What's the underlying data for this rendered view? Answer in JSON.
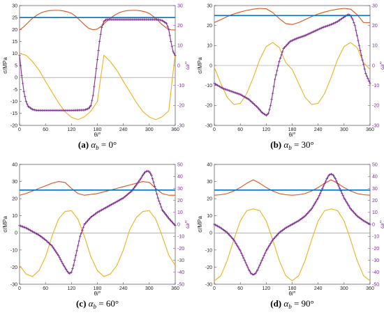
{
  "chart_data": [
    {
      "type": "line",
      "caption": {
        "label": "(a)",
        "sym": "α",
        "sub": "b",
        "rest": " = 0°"
      },
      "xlabel": "θ/°",
      "ylabel": "σ/MPa",
      "y2label": "ω/°",
      "xlim": [
        0,
        360
      ],
      "xticks": [
        0,
        60,
        120,
        180,
        240,
        300,
        360
      ],
      "ylim": [
        -20,
        30
      ],
      "yticks": [
        -20,
        -15,
        -10,
        -5,
        0,
        5,
        10,
        15,
        20,
        25,
        30
      ],
      "y2lim": [
        -30,
        30
      ],
      "y2ticks": [
        -30,
        -20,
        -10,
        0,
        10,
        20,
        30
      ],
      "colors": {
        "red": "#d95319",
        "yellow": "#edb120",
        "blue": "#0072bd",
        "purple": "#7e2f8e",
        "zero": "#888888"
      },
      "series": [
        {
          "axis": "left",
          "color": "red",
          "x": [
            0,
            10,
            20,
            30,
            40,
            50,
            60,
            70,
            80,
            90,
            100,
            110,
            120,
            130,
            140,
            150,
            160,
            170,
            180,
            190,
            200,
            210,
            220,
            230,
            240,
            250,
            260,
            270,
            280,
            290,
            300,
            310,
            320,
            330,
            340,
            350,
            360
          ],
          "y": [
            19.8,
            21.2,
            23,
            24.7,
            26,
            27,
            27.6,
            27.9,
            28,
            28,
            27.8,
            27.4,
            26.8,
            25.5,
            23.8,
            22,
            20.5,
            19.9,
            20.2,
            21.5,
            23.2,
            24.8,
            26,
            27,
            27.6,
            27.9,
            28,
            28,
            27.8,
            27.4,
            26.7,
            25.4,
            23.8,
            22,
            20.6,
            19.9,
            19.8
          ]
        },
        {
          "axis": "left",
          "color": "yellow",
          "x": [
            0,
            15,
            30,
            45,
            60,
            75,
            90,
            105,
            120,
            135,
            150,
            165,
            180,
            195,
            210,
            225,
            240,
            255,
            270,
            285,
            300,
            315,
            330,
            345,
            360
          ],
          "y": [
            10,
            9.3,
            6.6,
            3.1,
            -1.6,
            -6.1,
            -10.5,
            -14.3,
            -16.6,
            -17.6,
            -16.4,
            -14,
            -10,
            9.3,
            6.6,
            3,
            -1.6,
            -6,
            -10.4,
            -14.2,
            -16.5,
            -17.6,
            -16.4,
            -13.9,
            10
          ]
        },
        {
          "axis": "right",
          "color": "purple",
          "marker": true,
          "x": [
            0,
            5,
            10,
            15,
            20,
            30,
            40,
            60,
            90,
            120,
            150,
            160,
            165,
            170,
            175,
            180,
            185,
            190,
            195,
            200,
            210,
            220,
            240,
            270,
            300,
            320,
            330,
            340,
            345,
            350,
            355,
            360
          ],
          "y": [
            5,
            -5,
            -13,
            -18,
            -20.5,
            -22,
            -22.5,
            -22.5,
            -22.5,
            -22.5,
            -22.3,
            -21.5,
            -20,
            -15,
            -6,
            3,
            12,
            19,
            22,
            23,
            23,
            23,
            23,
            23,
            23,
            23,
            22.5,
            21,
            18,
            12,
            7,
            5
          ]
        },
        {
          "axis": "left",
          "color": "blue",
          "x": [
            0,
            360
          ],
          "y": [
            25,
            25
          ]
        },
        {
          "axis": "left",
          "color": "zero",
          "x": [
            0,
            360
          ],
          "y": [
            0,
            0
          ]
        }
      ]
    },
    {
      "type": "line",
      "caption": {
        "label": "(b)",
        "sym": "α",
        "sub": "b",
        "rest": " = 30°"
      },
      "xlabel": "θ/°",
      "ylabel": "σ/MPa",
      "y2label": "ω/°",
      "xlim": [
        0,
        360
      ],
      "xticks": [
        0,
        60,
        120,
        180,
        240,
        300,
        360
      ],
      "ylim": [
        -30,
        30
      ],
      "yticks": [
        -30,
        -20,
        -10,
        0,
        10,
        20,
        30
      ],
      "y2lim": [
        -30,
        30
      ],
      "y2ticks": [
        -30,
        -20,
        -10,
        0,
        10,
        20,
        30
      ],
      "colors": {
        "red": "#d95319",
        "yellow": "#edb120",
        "blue": "#0072bd",
        "purple": "#7e2f8e",
        "zero": "#888888"
      },
      "series": [
        {
          "axis": "left",
          "color": "red",
          "x": [
            0,
            15,
            30,
            45,
            60,
            75,
            90,
            105,
            120,
            135,
            150,
            165,
            180,
            195,
            210,
            225,
            240,
            255,
            270,
            285,
            300,
            315,
            330,
            345,
            360
          ],
          "y": [
            21.5,
            23,
            24.5,
            25.8,
            26.8,
            27.6,
            28.2,
            28.6,
            28.4,
            26.5,
            23.5,
            21,
            20.5,
            21.5,
            23,
            24.5,
            25.8,
            26.8,
            27.6,
            28.2,
            28.6,
            28.2,
            25.5,
            21.5,
            21.5
          ]
        },
        {
          "axis": "left",
          "color": "yellow",
          "x": [
            0,
            15,
            30,
            45,
            60,
            75,
            90,
            105,
            120,
            135,
            150,
            165,
            180,
            195,
            210,
            225,
            240,
            255,
            270,
            285,
            300,
            315,
            330,
            345,
            360
          ],
          "y": [
            -1,
            -9,
            -16,
            -19.5,
            -19,
            -14,
            -6,
            3,
            9.5,
            11.5,
            9,
            1.5,
            -2,
            -9,
            -16,
            -19.5,
            -19,
            -14,
            -6,
            3,
            9.5,
            11.5,
            9,
            1.5,
            -2
          ]
        },
        {
          "axis": "right",
          "color": "purple",
          "marker": true,
          "x": [
            0,
            20,
            40,
            60,
            80,
            100,
            110,
            120,
            125,
            130,
            135,
            140,
            150,
            160,
            175,
            190,
            210,
            230,
            250,
            270,
            285,
            295,
            305,
            310,
            315,
            320,
            325,
            330,
            340,
            350,
            360
          ],
          "y": [
            -9,
            -11.5,
            -13,
            -14.5,
            -17,
            -21,
            -23.5,
            -25,
            -24,
            -20,
            -14,
            -7,
            2,
            8.5,
            12,
            13.5,
            15,
            17,
            19,
            20.5,
            22,
            23.5,
            25,
            25.5,
            25,
            23,
            20,
            15,
            5,
            -4,
            -9
          ]
        },
        {
          "axis": "left",
          "color": "blue",
          "x": [
            0,
            360
          ],
          "y": [
            25,
            25
          ]
        },
        {
          "axis": "left",
          "color": "zero",
          "x": [
            0,
            360
          ],
          "y": [
            0,
            0
          ]
        }
      ]
    },
    {
      "type": "line",
      "caption": {
        "label": "(c)",
        "sym": "α",
        "sub": "b",
        "rest": " = 60°"
      },
      "xlabel": "θ/°",
      "ylabel": "σ/MPa",
      "y2label": "ω/°",
      "xlim": [
        0,
        360
      ],
      "xticks": [
        0,
        60,
        120,
        180,
        240,
        300,
        360
      ],
      "ylim": [
        -30,
        40
      ],
      "yticks": [
        -30,
        -20,
        -10,
        0,
        10,
        20,
        30,
        40
      ],
      "y2lim": [
        -50,
        50
      ],
      "y2ticks": [
        -50,
        -40,
        -30,
        -20,
        -10,
        0,
        10,
        20,
        30,
        40,
        50
      ],
      "colors": {
        "red": "#d95319",
        "yellow": "#edb120",
        "blue": "#0072bd",
        "purple": "#7e2f8e",
        "zero": "#888888"
      },
      "series": [
        {
          "axis": "left",
          "color": "red",
          "x": [
            0,
            15,
            30,
            45,
            60,
            75,
            90,
            105,
            120,
            135,
            150,
            165,
            180,
            195,
            210,
            225,
            240,
            255,
            270,
            285,
            300,
            315,
            330,
            345,
            360
          ],
          "y": [
            22,
            23,
            24.5,
            26,
            27.5,
            29,
            30,
            29.5,
            26,
            23,
            22,
            22.5,
            23,
            24,
            25,
            26,
            27,
            28,
            29,
            30,
            29.5,
            26,
            23,
            22,
            22
          ]
        },
        {
          "axis": "left",
          "color": "yellow",
          "x": [
            0,
            15,
            30,
            45,
            60,
            75,
            90,
            105,
            120,
            135,
            150,
            165,
            180,
            195,
            210,
            225,
            240,
            255,
            270,
            285,
            300,
            315,
            330,
            345,
            360
          ],
          "y": [
            -19,
            -24,
            -25.5,
            -22,
            -14,
            -2,
            8,
            12.5,
            13,
            8,
            -2,
            -14,
            -22,
            -25.5,
            -24,
            -19,
            -10,
            2,
            9,
            12.5,
            13,
            8,
            -2,
            -13,
            -19
          ]
        },
        {
          "axis": "right",
          "color": "purple",
          "marker": true,
          "x": [
            0,
            15,
            30,
            45,
            60,
            75,
            90,
            100,
            110,
            115,
            120,
            125,
            130,
            140,
            150,
            165,
            180,
            200,
            220,
            240,
            260,
            270,
            280,
            285,
            290,
            295,
            300,
            305,
            310,
            320,
            330,
            345,
            360
          ],
          "y": [
            -1,
            -3,
            -6,
            -9,
            -13,
            -18,
            -26,
            -33,
            -39,
            -41,
            -40,
            -34,
            -26,
            -10,
            0,
            6,
            10,
            14,
            18,
            22,
            28,
            33,
            38,
            41,
            43.5,
            44.5,
            44,
            41,
            35,
            22,
            12,
            5,
            -1
          ]
        },
        {
          "axis": "left",
          "color": "blue",
          "x": [
            0,
            360
          ],
          "y": [
            25,
            25
          ]
        },
        {
          "axis": "left",
          "color": "zero",
          "x": [
            0,
            360
          ],
          "y": [
            0,
            0
          ]
        }
      ]
    },
    {
      "type": "line",
      "caption": {
        "label": "(d)",
        "sym": "α",
        "sub": "b",
        "rest": " = 90°"
      },
      "xlabel": "θ/°",
      "ylabel": "σ/MPa",
      "y2label": "ω/°",
      "xlim": [
        0,
        360
      ],
      "xticks": [
        0,
        60,
        120,
        180,
        240,
        300,
        360
      ],
      "ylim": [
        -30,
        40
      ],
      "yticks": [
        -30,
        -20,
        -10,
        0,
        10,
        20,
        30,
        40
      ],
      "y2lim": [
        -50,
        50
      ],
      "y2ticks": [
        -50,
        -40,
        -30,
        -20,
        -10,
        0,
        10,
        20,
        30,
        40,
        50
      ],
      "colors": {
        "red": "#d95319",
        "yellow": "#edb120",
        "blue": "#0072bd",
        "purple": "#7e2f8e",
        "zero": "#888888"
      },
      "series": [
        {
          "axis": "left",
          "color": "red",
          "x": [
            0,
            15,
            30,
            45,
            60,
            75,
            90,
            105,
            120,
            135,
            150,
            165,
            180,
            195,
            210,
            225,
            240,
            255,
            270,
            285,
            300,
            315,
            330,
            345,
            360
          ],
          "y": [
            22,
            22.3,
            23,
            24.5,
            26.5,
            29,
            31,
            29,
            26.5,
            24.5,
            23,
            22.3,
            22,
            22.3,
            23,
            24.5,
            26.5,
            29,
            31,
            29,
            26.5,
            24.5,
            23,
            22.3,
            22
          ]
        },
        {
          "axis": "left",
          "color": "yellow",
          "x": [
            0,
            15,
            30,
            45,
            60,
            75,
            90,
            105,
            120,
            135,
            150,
            165,
            180,
            195,
            210,
            225,
            240,
            255,
            270,
            285,
            300,
            315,
            330,
            345,
            360
          ],
          "y": [
            -28,
            -25,
            -16,
            -4,
            7,
            13,
            14,
            13,
            7,
            -4,
            -16,
            -25,
            -28,
            -25,
            -16,
            -4,
            7,
            13,
            14,
            13,
            7,
            -4,
            -16,
            -25,
            -28
          ]
        },
        {
          "axis": "right",
          "color": "purple",
          "marker": true,
          "x": [
            0,
            15,
            30,
            45,
            60,
            70,
            80,
            85,
            90,
            95,
            100,
            110,
            120,
            135,
            150,
            165,
            180,
            195,
            210,
            225,
            240,
            250,
            260,
            265,
            270,
            275,
            280,
            290,
            300,
            315,
            330,
            345,
            360
          ],
          "y": [
            0,
            -3,
            -7,
            -13,
            -22,
            -30,
            -38,
            -41,
            -42,
            -41,
            -38,
            -30,
            -22,
            -13,
            -7,
            -3,
            0,
            3,
            7,
            13,
            22,
            30,
            38,
            41,
            42,
            41,
            38,
            30,
            22,
            13,
            7,
            3,
            0
          ]
        },
        {
          "axis": "left",
          "color": "blue",
          "x": [
            0,
            360
          ],
          "y": [
            25,
            25
          ]
        },
        {
          "axis": "left",
          "color": "zero",
          "x": [
            0,
            360
          ],
          "y": [
            0,
            0
          ]
        }
      ]
    }
  ]
}
